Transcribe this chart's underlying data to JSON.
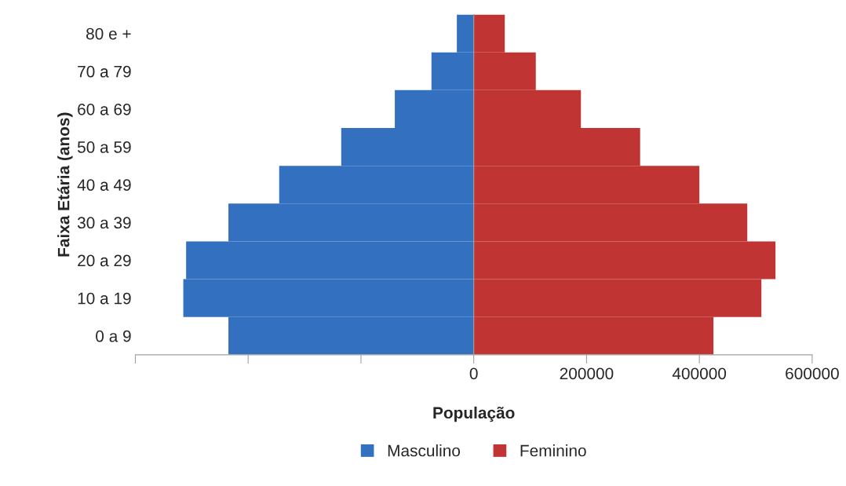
{
  "chart_data": {
    "type": "bar",
    "orientation": "horizontal",
    "xlabel": "População",
    "ylabel": "Faixa Etária (anos)",
    "categories": [
      "80 e +",
      "70 a 79",
      "60 a 69",
      "50 a 59",
      "40 a 49",
      "30 a 39",
      "20 a 29",
      "10 a 19",
      "0 a 9"
    ],
    "series": [
      {
        "name": "Masculino",
        "color": "#3470c0",
        "values": [
          -30000,
          -75000,
          -140000,
          -235000,
          -345000,
          -435000,
          -510000,
          -515000,
          -435000
        ]
      },
      {
        "name": "Feminino",
        "color": "#c03534",
        "values": [
          55000,
          110000,
          190000,
          295000,
          400000,
          485000,
          535000,
          510000,
          425000
        ]
      }
    ],
    "xlim": [
      -600000,
      600000
    ],
    "xticks": [
      {
        "value": -600000,
        "label": null
      },
      {
        "value": -400000,
        "label": null
      },
      {
        "value": -200000,
        "label": null
      },
      0,
      200000,
      400000,
      600000
    ],
    "stacked": true,
    "legend": "bottom"
  }
}
